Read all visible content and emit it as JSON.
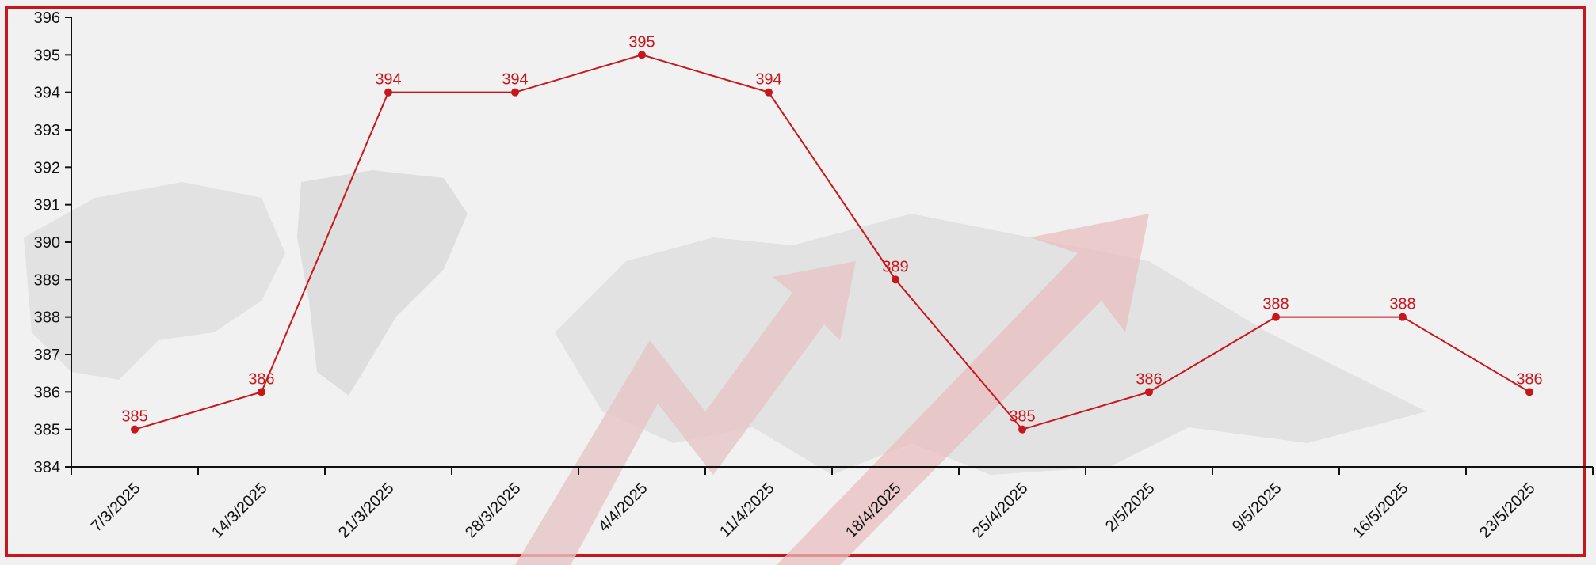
{
  "chart_data": {
    "type": "line",
    "title": "",
    "xlabel": "",
    "ylabel": "",
    "categories": [
      "7/3/2025",
      "14/3/2025",
      "21/3/2025",
      "28/3/2025",
      "4/4/2025",
      "11/4/2025",
      "18/4/2025",
      "25/4/2025",
      "2/5/2025",
      "9/5/2025",
      "16/5/2025",
      "23/5/2025"
    ],
    "series": [
      {
        "values": [
          385,
          386,
          394,
          394,
          395,
          394,
          389,
          385,
          386,
          388,
          388,
          386
        ]
      }
    ],
    "ylim": [
      384,
      396
    ],
    "yticks": [
      384,
      385,
      386,
      387,
      388,
      389,
      390,
      391,
      392,
      393,
      394,
      395,
      396
    ],
    "line_color": "#c8171c",
    "frame_color": "#c8171c",
    "grid": false,
    "data_labels": true,
    "legend": "none"
  }
}
